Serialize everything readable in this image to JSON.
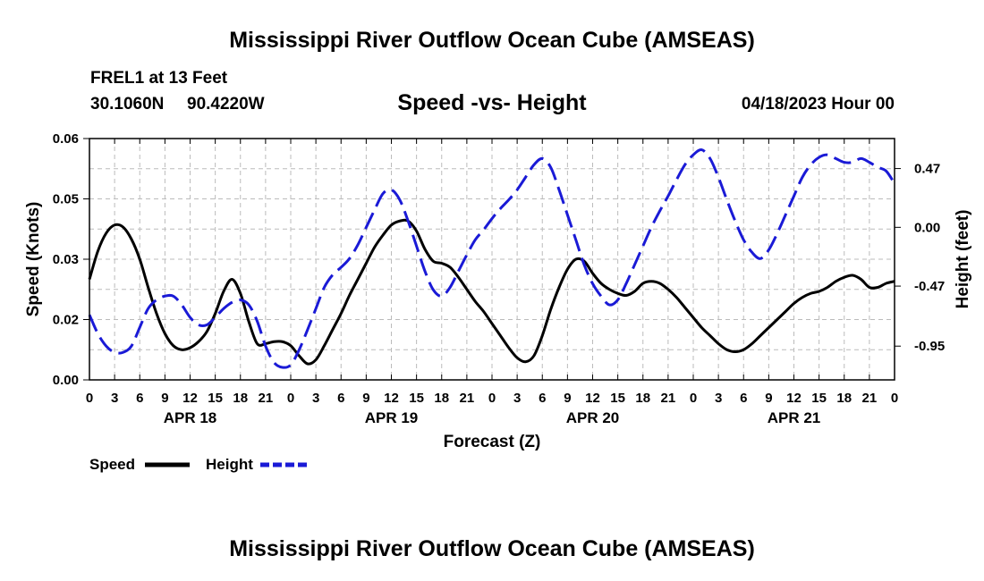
{
  "main_title": "Mississippi River Outflow Ocean Cube (AMSEAS)",
  "station": {
    "name": "FREL1 at 13 Feet",
    "lat": "30.1060N",
    "lon": "90.4220W",
    "datetime": "04/18/2023 Hour 00"
  },
  "footer_title": "Mississippi River Outflow Ocean Cube (AMSEAS)",
  "colors": {
    "speed": "#000000",
    "height": "#1a1ad6",
    "grid": "#bbbbbb"
  },
  "chart_data": {
    "type": "line",
    "title": "Speed -vs- Height",
    "xlabel": "Forecast (Z)",
    "ylabel": "Speed (Knots)",
    "y2label": "Height (feet)",
    "ylim": [
      0,
      0.06
    ],
    "y_ticks": [
      "0.00",
      "0.02",
      "0.03",
      "0.05",
      "0.06"
    ],
    "y2lim": [
      -1.22,
      0.71
    ],
    "y2_ticks": [
      "0.47",
      "0.00",
      "-0.47",
      "-0.95"
    ],
    "x_range_hours": [
      0,
      96
    ],
    "x_tick_labels": [
      "0",
      "3",
      "6",
      "9",
      "12",
      "15",
      "18",
      "21",
      "0",
      "3",
      "6",
      "9",
      "12",
      "15",
      "18",
      "21",
      "0",
      "3",
      "6",
      "9",
      "12",
      "15",
      "18",
      "21",
      "0",
      "3",
      "6",
      "9",
      "12",
      "15",
      "18",
      "21",
      "0"
    ],
    "day_labels": [
      {
        "label": "APR 18",
        "hour": 12
      },
      {
        "label": "APR 19",
        "hour": 36
      },
      {
        "label": "APR 20",
        "hour": 60
      },
      {
        "label": "APR 21",
        "hour": 84
      }
    ],
    "grid": true,
    "legend_position": "bottom-left",
    "series": [
      {
        "name": "Speed",
        "axis": "left",
        "style": "solid",
        "x": [
          0,
          1,
          2,
          3,
          4,
          5,
          6,
          7,
          8,
          9,
          10,
          11,
          12,
          13,
          14,
          15,
          16,
          17,
          18,
          19,
          20,
          21,
          22,
          23,
          24,
          25,
          26,
          27,
          28,
          29,
          30,
          31,
          32,
          33,
          34,
          35,
          36,
          37,
          38,
          39,
          40,
          41,
          42,
          43,
          44,
          45,
          46,
          47,
          48,
          49,
          50,
          51,
          52,
          53,
          54,
          55,
          56,
          57,
          58,
          59,
          60,
          61,
          62,
          63,
          64,
          65,
          66,
          67,
          68,
          69,
          70,
          71,
          72,
          73,
          74,
          75,
          76,
          77,
          78,
          79,
          80,
          81,
          82,
          83,
          84,
          85,
          86,
          87,
          88,
          89,
          90,
          91,
          92,
          93,
          94,
          95,
          96
        ],
        "values": [
          0.025,
          0.032,
          0.0365,
          0.0385,
          0.038,
          0.035,
          0.03,
          0.023,
          0.0165,
          0.0115,
          0.0085,
          0.0075,
          0.008,
          0.0095,
          0.012,
          0.0165,
          0.022,
          0.025,
          0.0215,
          0.0145,
          0.009,
          0.009,
          0.0095,
          0.0095,
          0.0085,
          0.006,
          0.004,
          0.005,
          0.0085,
          0.0125,
          0.0165,
          0.021,
          0.025,
          0.029,
          0.033,
          0.036,
          0.0385,
          0.0395,
          0.0395,
          0.037,
          0.0325,
          0.0295,
          0.029,
          0.028,
          0.0255,
          0.0225,
          0.0195,
          0.017,
          0.014,
          0.011,
          0.008,
          0.0055,
          0.0045,
          0.006,
          0.011,
          0.0175,
          0.023,
          0.0275,
          0.03,
          0.0295,
          0.0265,
          0.024,
          0.0225,
          0.0215,
          0.021,
          0.022,
          0.024,
          0.0245,
          0.024,
          0.0225,
          0.0205,
          0.018,
          0.0155,
          0.013,
          0.011,
          0.009,
          0.0075,
          0.007,
          0.0075,
          0.009,
          0.011,
          0.013,
          0.015,
          0.017,
          0.019,
          0.0205,
          0.0215,
          0.022,
          0.023,
          0.0245,
          0.0255,
          0.026,
          0.025,
          0.023,
          0.023,
          0.024,
          0.0245
        ]
      },
      {
        "name": "Height",
        "axis": "right",
        "style": "dashed",
        "x": [
          0,
          1,
          2,
          3,
          4,
          5,
          6,
          7,
          8,
          9,
          10,
          11,
          12,
          13,
          14,
          15,
          16,
          17,
          18,
          19,
          20,
          21,
          22,
          23,
          24,
          25,
          26,
          27,
          28,
          29,
          30,
          31,
          32,
          33,
          34,
          35,
          36,
          37,
          38,
          39,
          40,
          41,
          42,
          43,
          44,
          45,
          46,
          47,
          48,
          49,
          50,
          51,
          52,
          53,
          54,
          55,
          56,
          57,
          58,
          59,
          60,
          61,
          62,
          63,
          64,
          65,
          66,
          67,
          68,
          69,
          70,
          71,
          72,
          73,
          74,
          75,
          76,
          77,
          78,
          79,
          80,
          81,
          82,
          83,
          84,
          85,
          86,
          87,
          88,
          89,
          90,
          91,
          92,
          93,
          94,
          95,
          96
        ],
        "values": [
          -0.7,
          -0.85,
          -0.95,
          -1.0,
          -1.0,
          -0.95,
          -0.8,
          -0.65,
          -0.58,
          -0.55,
          -0.55,
          -0.62,
          -0.72,
          -0.78,
          -0.78,
          -0.72,
          -0.65,
          -0.6,
          -0.58,
          -0.62,
          -0.75,
          -0.95,
          -1.08,
          -1.12,
          -1.1,
          -0.98,
          -0.82,
          -0.65,
          -0.48,
          -0.38,
          -0.32,
          -0.25,
          -0.14,
          0.0,
          0.14,
          0.27,
          0.3,
          0.22,
          0.05,
          -0.15,
          -0.35,
          -0.5,
          -0.55,
          -0.48,
          -0.35,
          -0.22,
          -0.1,
          -0.02,
          0.07,
          0.15,
          0.22,
          0.3,
          0.4,
          0.5,
          0.55,
          0.48,
          0.3,
          0.1,
          -0.1,
          -0.3,
          -0.45,
          -0.55,
          -0.62,
          -0.58,
          -0.45,
          -0.3,
          -0.15,
          0.0,
          0.13,
          0.25,
          0.38,
          0.5,
          0.58,
          0.62,
          0.55,
          0.4,
          0.22,
          0.05,
          -0.1,
          -0.2,
          -0.25,
          -0.18,
          -0.05,
          0.1,
          0.25,
          0.4,
          0.5,
          0.56,
          0.58,
          0.55,
          0.52,
          0.52,
          0.55,
          0.52,
          0.48,
          0.45,
          0.35
        ]
      }
    ]
  }
}
